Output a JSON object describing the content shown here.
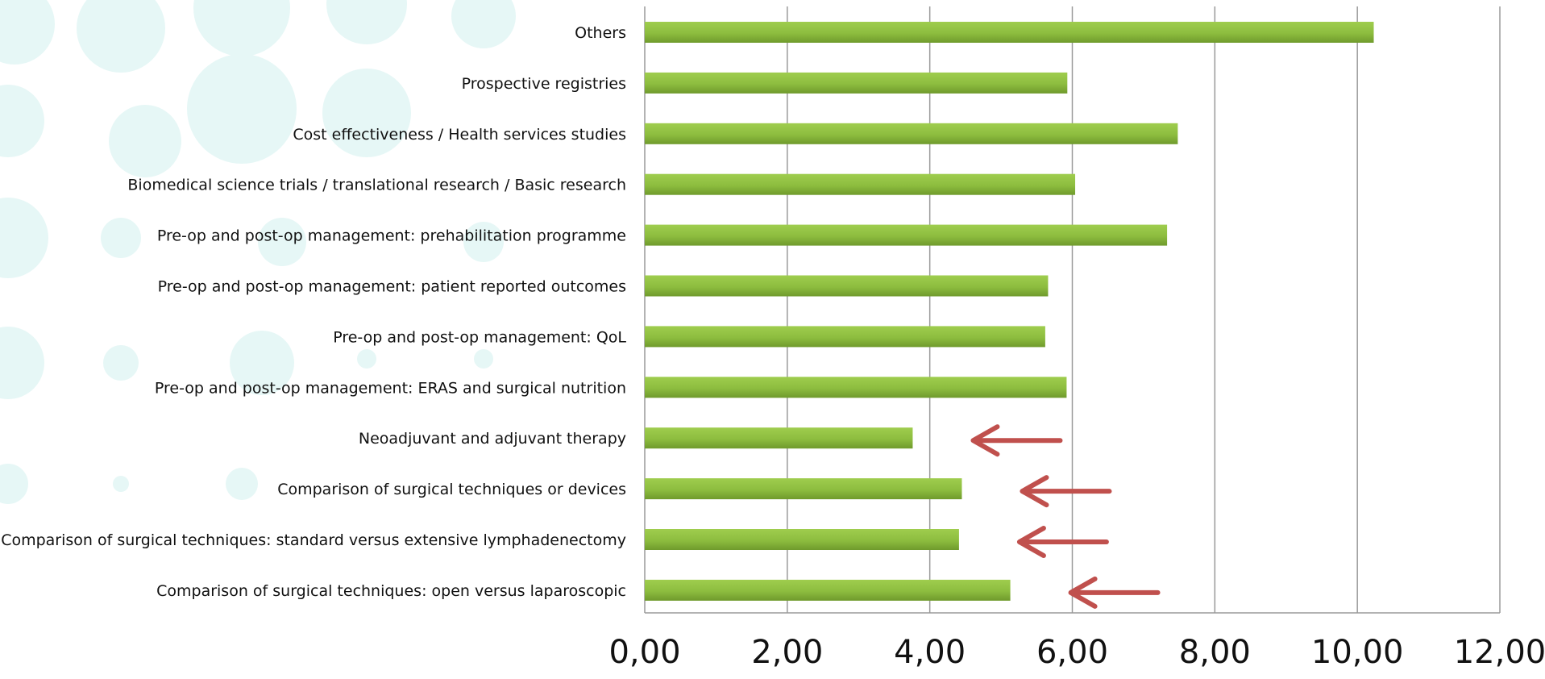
{
  "chart_data": {
    "type": "bar",
    "orientation": "horizontal",
    "categories": [
      "Others",
      "Prospective registries",
      "Cost effectiveness / Health services studies",
      "Biomedical science trials / translational research / Basic research",
      "Pre-op and post-op management: prehabilitation programme",
      "Pre-op and post-op management: patient reported outcomes",
      "Pre-op and post-op management: QoL",
      "Pre-op and post-op management: ERAS and surgical nutrition",
      "Neoadjuvant and adjuvant therapy",
      "Comparison of surgical techniques or devices",
      "Comparison of surgical techniques: standard versus extensive lymphadenectomy",
      "Comparison of surgical techniques: open versus laparoscopic"
    ],
    "values": [
      10.23,
      5.93,
      7.48,
      6.04,
      7.33,
      5.66,
      5.62,
      5.92,
      3.76,
      4.45,
      4.41,
      5.13
    ],
    "xlim": [
      0,
      12
    ],
    "xticks": [
      "0,00",
      "2,00",
      "4,00",
      "6,00",
      "8,00",
      "10,00",
      "12,00"
    ],
    "grid": true,
    "bar_color": "#8dbd3f",
    "annotations": {
      "type": "arrows",
      "color": "#c0504d",
      "pointing_left_next_to": [
        "Neoadjuvant and adjuvant therapy",
        "Comparison of surgical techniques or devices",
        "Comparison of surgical techniques: standard versus extensive lymphadenectomy",
        "Comparison of surgical techniques: open versus laparoscopic"
      ]
    }
  },
  "colors": {
    "background_dots": "#e6f7f6",
    "gridline": "#9a9a9a",
    "axis": "#9a9a9a"
  }
}
